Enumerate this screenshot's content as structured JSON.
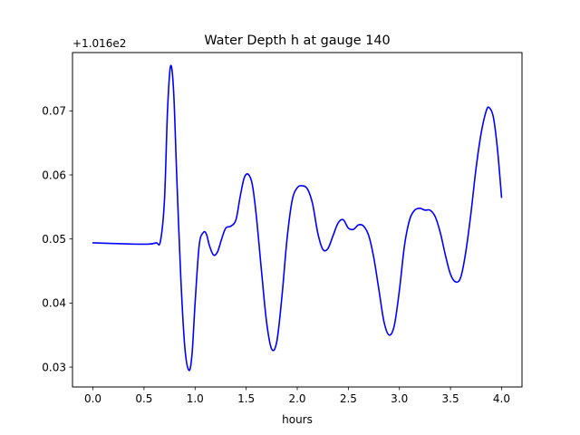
{
  "chart_data": {
    "type": "line",
    "title": "Water Depth h at gauge 140",
    "xlabel": "hours",
    "ylabel": "",
    "offset_text": "+1.016e2",
    "y_offset": 101.6,
    "xlim": [
      -0.2,
      4.2
    ],
    "ylim": [
      0.0269,
      0.0791
    ],
    "grid": false,
    "x_ticks": [
      0.0,
      0.5,
      1.0,
      1.5,
      2.0,
      2.5,
      3.0,
      3.5,
      4.0
    ],
    "x_tick_labels": [
      "0.0",
      "0.5",
      "1.0",
      "1.5",
      "2.0",
      "2.5",
      "3.0",
      "3.5",
      "4.0"
    ],
    "y_ticks": [
      0.03,
      0.04,
      0.05,
      0.06,
      0.07
    ],
    "y_tick_labels": [
      "0.03",
      "0.04",
      "0.05",
      "0.06",
      "0.07"
    ],
    "series": [
      {
        "name": "",
        "color": "#0000ff",
        "x": [
          0.0,
          0.2,
          0.4,
          0.55,
          0.62,
          0.66,
          0.7,
          0.73,
          0.76,
          0.79,
          0.82,
          0.86,
          0.9,
          0.94,
          0.97,
          1.0,
          1.04,
          1.08,
          1.11,
          1.14,
          1.18,
          1.22,
          1.26,
          1.3,
          1.35,
          1.4,
          1.44,
          1.48,
          1.52,
          1.56,
          1.6,
          1.65,
          1.7,
          1.75,
          1.8,
          1.85,
          1.9,
          1.95,
          2.0,
          2.05,
          2.1,
          2.15,
          2.2,
          2.25,
          2.3,
          2.35,
          2.4,
          2.45,
          2.5,
          2.55,
          2.6,
          2.65,
          2.7,
          2.75,
          2.8,
          2.85,
          2.9,
          2.95,
          3.0,
          3.05,
          3.1,
          3.15,
          3.2,
          3.25,
          3.3,
          3.35,
          3.4,
          3.45,
          3.5,
          3.55,
          3.6,
          3.65,
          3.7,
          3.75,
          3.8,
          3.85,
          3.88,
          3.92,
          3.96,
          4.0
        ],
        "y": [
          0.0494,
          0.0493,
          0.0492,
          0.0492,
          0.0494,
          0.0496,
          0.056,
          0.07,
          0.077,
          0.073,
          0.06,
          0.044,
          0.033,
          0.0295,
          0.032,
          0.04,
          0.049,
          0.051,
          0.0508,
          0.049,
          0.0475,
          0.048,
          0.05,
          0.0517,
          0.052,
          0.053,
          0.0565,
          0.0595,
          0.0601,
          0.0585,
          0.0535,
          0.045,
          0.037,
          0.0328,
          0.034,
          0.041,
          0.05,
          0.056,
          0.058,
          0.0583,
          0.0578,
          0.0555,
          0.051,
          0.0484,
          0.0485,
          0.0505,
          0.0525,
          0.053,
          0.0517,
          0.0515,
          0.0522,
          0.052,
          0.0505,
          0.047,
          0.042,
          0.037,
          0.035,
          0.0365,
          0.042,
          0.049,
          0.053,
          0.0545,
          0.0548,
          0.0545,
          0.0545,
          0.0535,
          0.051,
          0.0475,
          0.0445,
          0.0433,
          0.044,
          0.048,
          0.054,
          0.061,
          0.0665,
          0.07,
          0.0705,
          0.069,
          0.064,
          0.0565
        ]
      }
    ]
  }
}
